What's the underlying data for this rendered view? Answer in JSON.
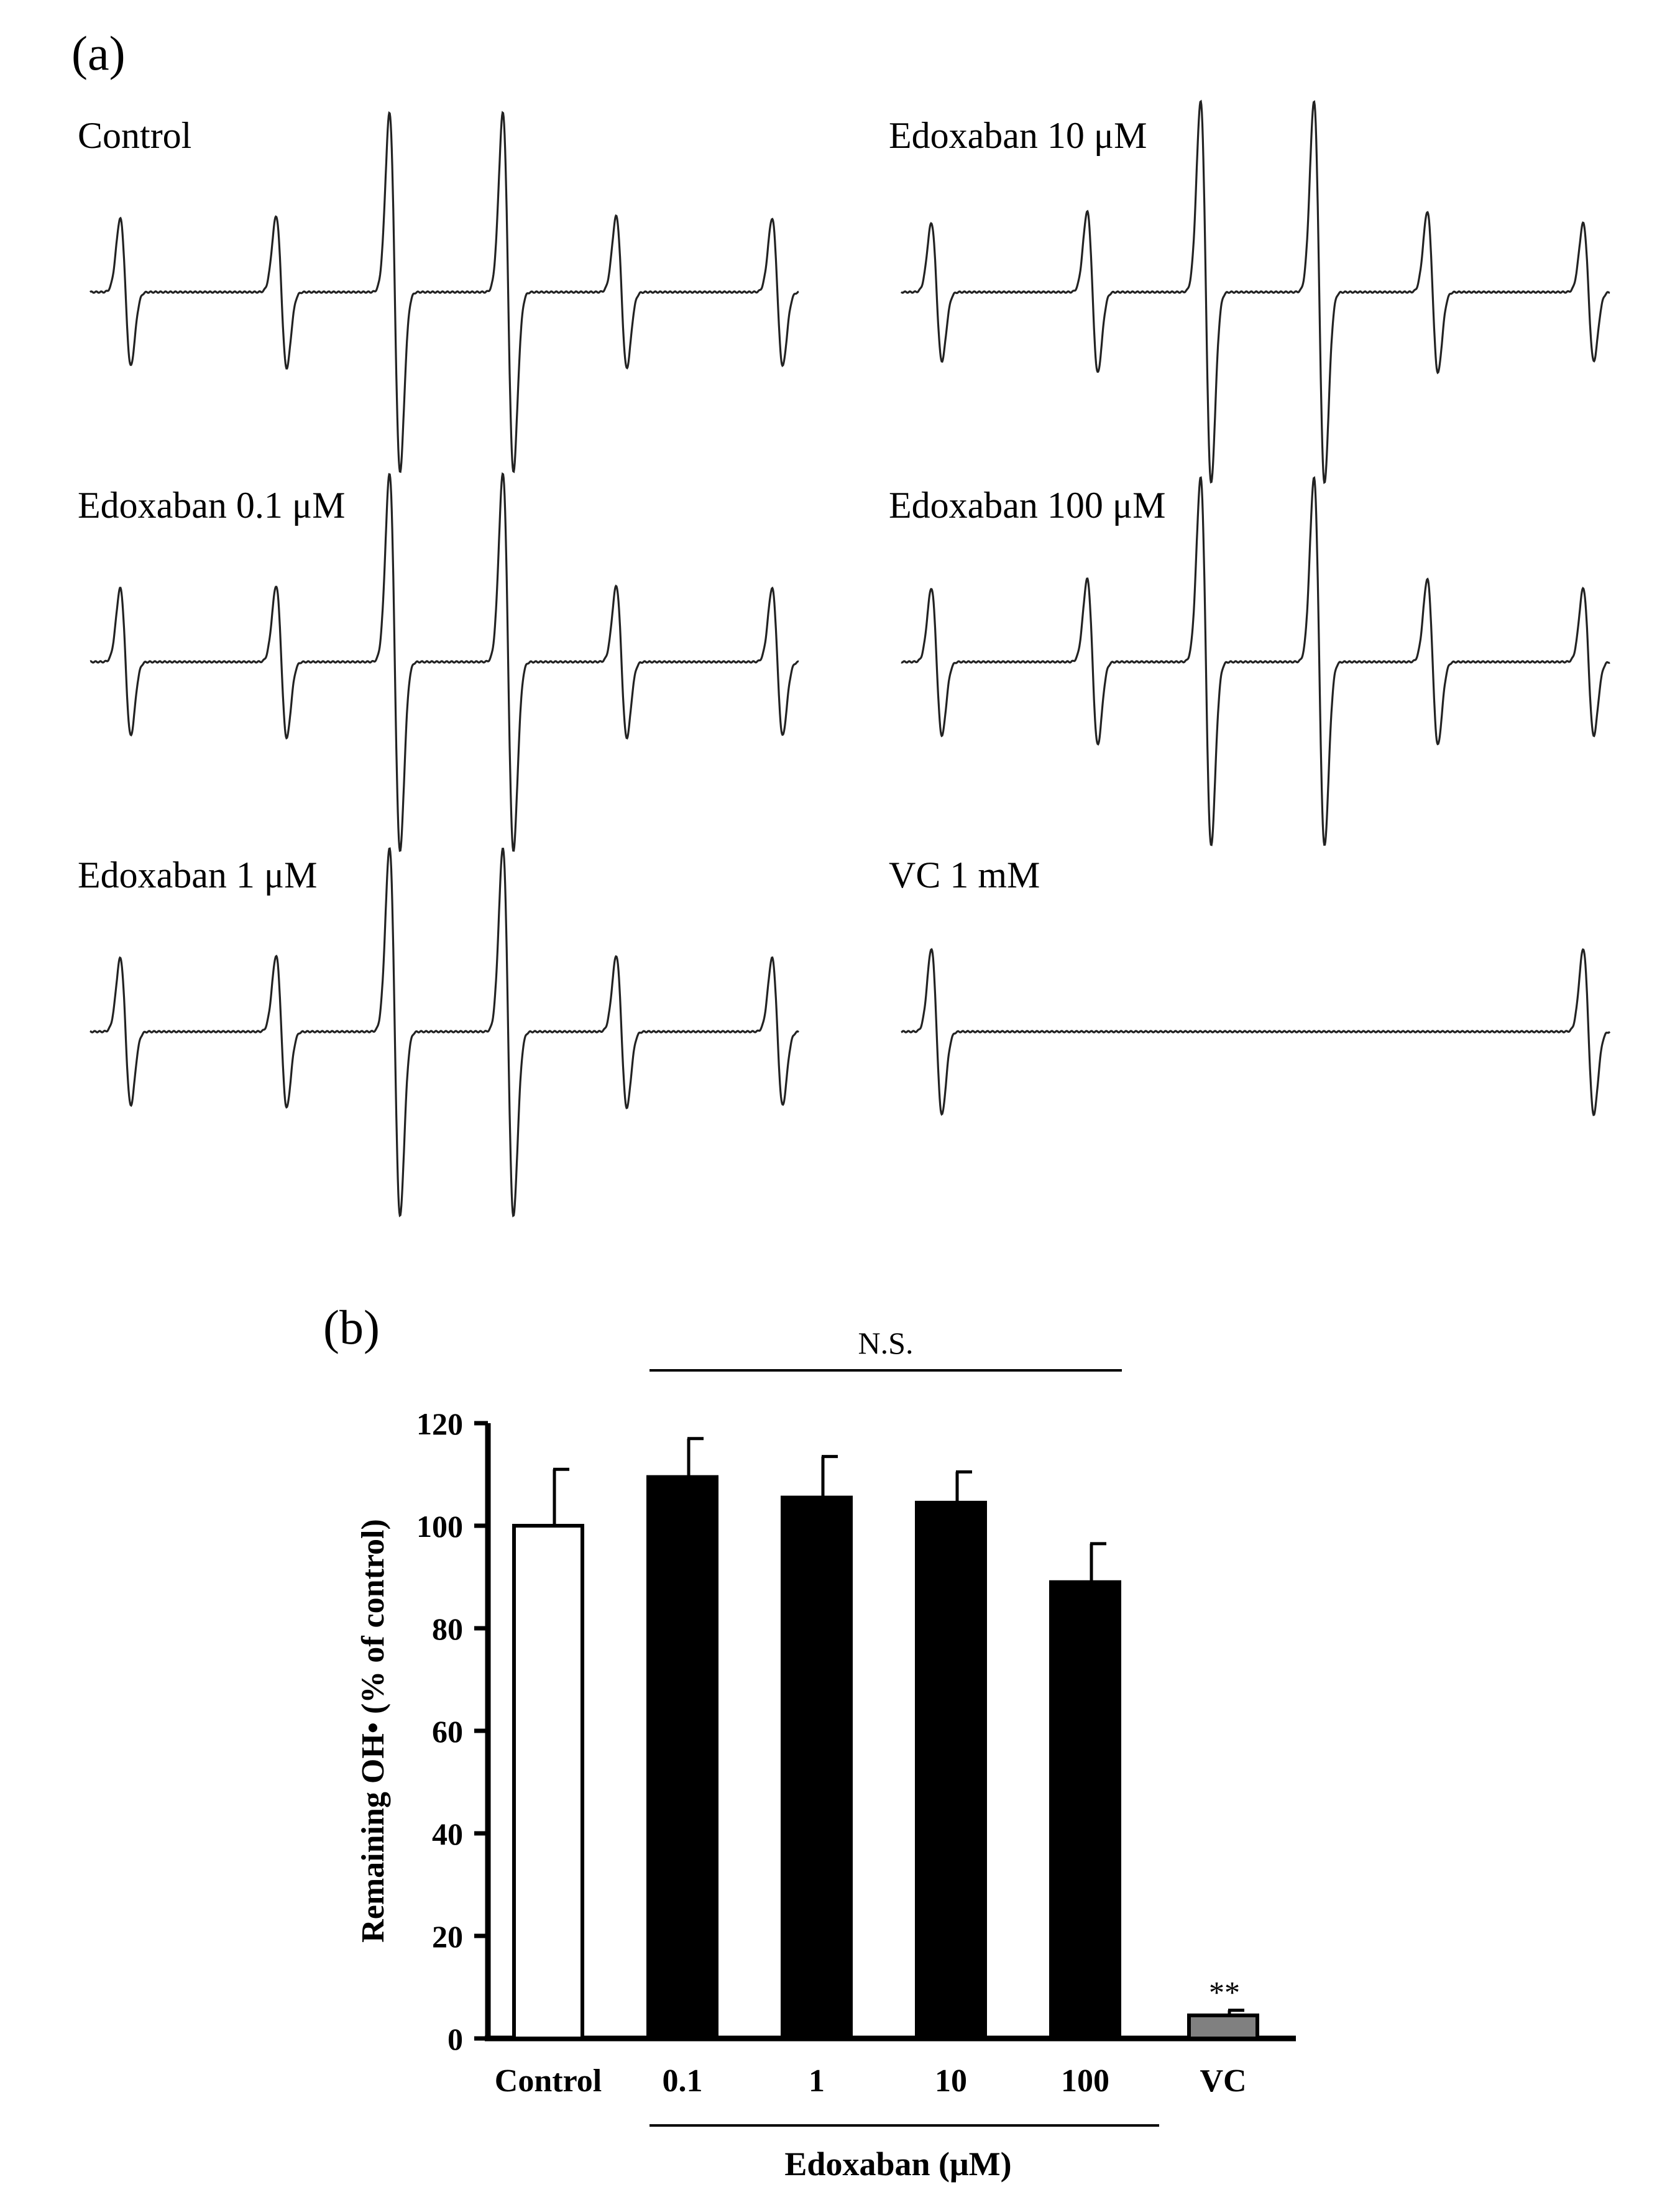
{
  "chart_data": [
    {
      "type": "line",
      "panel_label": "(a)",
      "xlabel": "",
      "ylabel": "",
      "spectra": [
        {
          "name": "Control",
          "col": 0,
          "row": 0,
          "peak_heights": [
            0.32,
            0.33,
            0.78,
            0.78,
            0.33,
            0.32
          ]
        },
        {
          "name": "Edoxaban 0.1 μM",
          "col": 0,
          "row": 1,
          "peak_heights": [
            0.32,
            0.33,
            0.82,
            0.82,
            0.33,
            0.32
          ]
        },
        {
          "name": "Edoxaban 1 μM",
          "col": 0,
          "row": 2,
          "peak_heights": [
            0.32,
            0.33,
            0.8,
            0.8,
            0.33,
            0.32
          ]
        },
        {
          "name": "Edoxaban 10 μM",
          "col": 1,
          "row": 0,
          "peak_heights": [
            0.3,
            0.35,
            0.83,
            0.83,
            0.35,
            0.3
          ]
        },
        {
          "name": "Edoxaban 100 μM",
          "col": 1,
          "row": 1,
          "peak_heights": [
            0.32,
            0.36,
            0.8,
            0.8,
            0.36,
            0.32
          ]
        },
        {
          "name": "VC 1 mM",
          "col": 1,
          "row": 2,
          "peak_heights": [
            0.36,
            0,
            0,
            0,
            0,
            0.36
          ]
        }
      ]
    },
    {
      "type": "bar",
      "panel_label": "(b)",
      "categories": [
        "Control",
        "0.1",
        "1",
        "10",
        "100",
        "VC"
      ],
      "values": [
        100,
        109.5,
        105.5,
        104.5,
        89,
        4.5
      ],
      "errors": [
        11,
        7.5,
        8,
        6,
        7.5,
        1
      ],
      "bar_colors": [
        "#ffffff",
        "#000000",
        "#000000",
        "#000000",
        "#000000",
        "#808080"
      ],
      "ylabel": "Remaining OH•  (% of control)",
      "xlabel": "Edoxaban (μM)",
      "ylim": [
        0,
        120
      ],
      "yticks": [
        0,
        20,
        40,
        60,
        80,
        100,
        120
      ],
      "grid": false,
      "annotations": [
        {
          "text": "N.S.",
          "target": "bracket over 0.1, 1, 10, 100"
        },
        {
          "text": "**",
          "target": "VC"
        }
      ]
    }
  ]
}
